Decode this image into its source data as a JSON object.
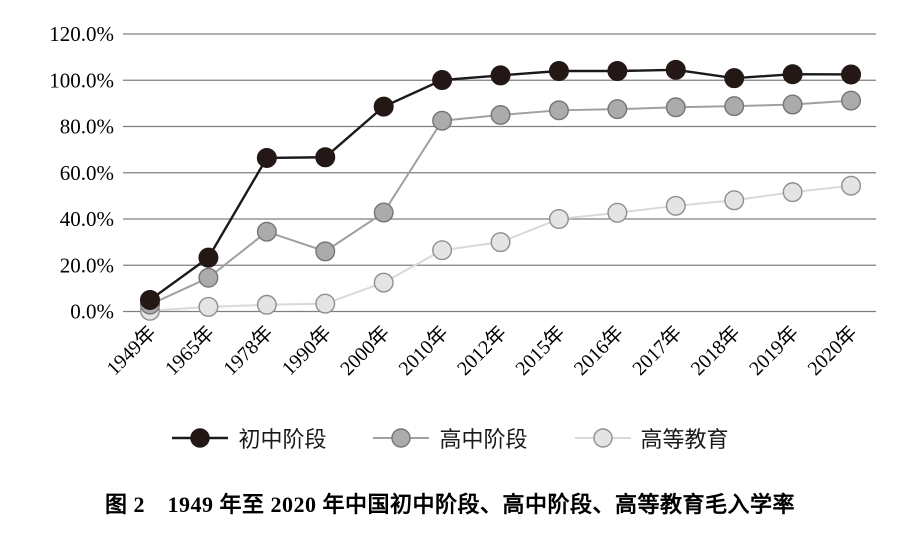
{
  "chart_data": {
    "type": "line",
    "title": "",
    "caption": "图 2　1949 年至 2020 年中国初中阶段、高中阶段、高等教育毛入学率",
    "categories": [
      "1949年",
      "1965年",
      "1978年",
      "1990年",
      "2000年",
      "2010年",
      "2012年",
      "2015年",
      "2016年",
      "2017年",
      "2018年",
      "2019年",
      "2020年"
    ],
    "y_ticks": [
      "0.0%",
      "20.0%",
      "40.0%",
      "60.0%",
      "80.0%",
      "100.0%",
      "120.0%"
    ],
    "y_tick_values": [
      0,
      20,
      40,
      60,
      80,
      100,
      120
    ],
    "ylim": [
      0,
      120
    ],
    "xlabel": "",
    "ylabel": "",
    "grid": "horizontal",
    "legend_position": "bottom",
    "series": [
      {
        "name": "初中阶段",
        "values": [
          5.0,
          23.3,
          66.4,
          66.7,
          88.6,
          100.1,
          102.1,
          104.0,
          104.0,
          104.5,
          100.9,
          102.6,
          102.5
        ],
        "line_color": "#1a1a1a",
        "marker_fill": "#231815",
        "marker_stroke": "#231815"
      },
      {
        "name": "高中阶段",
        "values": [
          3.0,
          14.6,
          34.5,
          26.0,
          42.8,
          82.5,
          85.0,
          87.0,
          87.5,
          88.3,
          88.8,
          89.5,
          91.2
        ],
        "line_color": "#a0a0a0",
        "marker_fill": "#ababab",
        "marker_stroke": "#757575"
      },
      {
        "name": "高等教育",
        "values": [
          0.3,
          2.0,
          2.9,
          3.4,
          12.5,
          26.5,
          30.0,
          40.0,
          42.7,
          45.7,
          48.1,
          51.6,
          54.4
        ],
        "line_color": "#d9d9d9",
        "marker_fill": "#e4e4e4",
        "marker_stroke": "#8f8f8f"
      }
    ],
    "colors": {
      "gridline": "#7f7f7f",
      "text": "#000000",
      "background": "#ffffff"
    }
  }
}
